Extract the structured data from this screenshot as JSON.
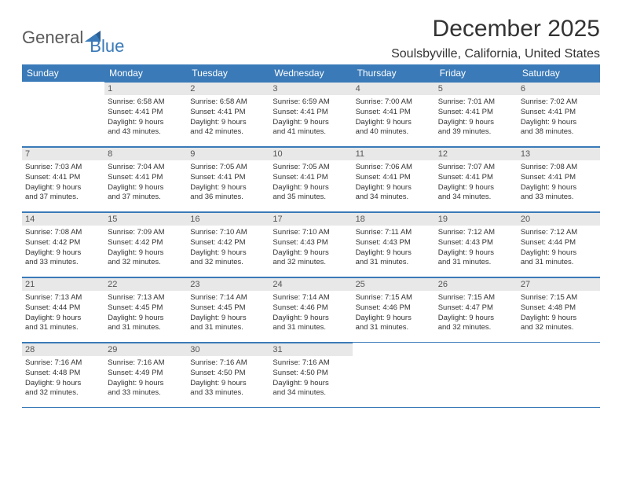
{
  "logo": {
    "part1": "General",
    "part2": "Blue"
  },
  "title": "December 2025",
  "location": "Soulsbyville, California, United States",
  "day_names": [
    "Sunday",
    "Monday",
    "Tuesday",
    "Wednesday",
    "Thursday",
    "Friday",
    "Saturday"
  ],
  "colors": {
    "header_bg": "#3a7ab8",
    "header_text": "#ffffff",
    "daynum_bg": "#e8e8e8",
    "daynum_text": "#555555",
    "rule": "#3a7ab8"
  },
  "weeks": [
    [
      {
        "n": "",
        "lines": []
      },
      {
        "n": "1",
        "lines": [
          "Sunrise: 6:58 AM",
          "Sunset: 4:41 PM",
          "Daylight: 9 hours",
          "and 43 minutes."
        ]
      },
      {
        "n": "2",
        "lines": [
          "Sunrise: 6:58 AM",
          "Sunset: 4:41 PM",
          "Daylight: 9 hours",
          "and 42 minutes."
        ]
      },
      {
        "n": "3",
        "lines": [
          "Sunrise: 6:59 AM",
          "Sunset: 4:41 PM",
          "Daylight: 9 hours",
          "and 41 minutes."
        ]
      },
      {
        "n": "4",
        "lines": [
          "Sunrise: 7:00 AM",
          "Sunset: 4:41 PM",
          "Daylight: 9 hours",
          "and 40 minutes."
        ]
      },
      {
        "n": "5",
        "lines": [
          "Sunrise: 7:01 AM",
          "Sunset: 4:41 PM",
          "Daylight: 9 hours",
          "and 39 minutes."
        ]
      },
      {
        "n": "6",
        "lines": [
          "Sunrise: 7:02 AM",
          "Sunset: 4:41 PM",
          "Daylight: 9 hours",
          "and 38 minutes."
        ]
      }
    ],
    [
      {
        "n": "7",
        "lines": [
          "Sunrise: 7:03 AM",
          "Sunset: 4:41 PM",
          "Daylight: 9 hours",
          "and 37 minutes."
        ]
      },
      {
        "n": "8",
        "lines": [
          "Sunrise: 7:04 AM",
          "Sunset: 4:41 PM",
          "Daylight: 9 hours",
          "and 37 minutes."
        ]
      },
      {
        "n": "9",
        "lines": [
          "Sunrise: 7:05 AM",
          "Sunset: 4:41 PM",
          "Daylight: 9 hours",
          "and 36 minutes."
        ]
      },
      {
        "n": "10",
        "lines": [
          "Sunrise: 7:05 AM",
          "Sunset: 4:41 PM",
          "Daylight: 9 hours",
          "and 35 minutes."
        ]
      },
      {
        "n": "11",
        "lines": [
          "Sunrise: 7:06 AM",
          "Sunset: 4:41 PM",
          "Daylight: 9 hours",
          "and 34 minutes."
        ]
      },
      {
        "n": "12",
        "lines": [
          "Sunrise: 7:07 AM",
          "Sunset: 4:41 PM",
          "Daylight: 9 hours",
          "and 34 minutes."
        ]
      },
      {
        "n": "13",
        "lines": [
          "Sunrise: 7:08 AM",
          "Sunset: 4:41 PM",
          "Daylight: 9 hours",
          "and 33 minutes."
        ]
      }
    ],
    [
      {
        "n": "14",
        "lines": [
          "Sunrise: 7:08 AM",
          "Sunset: 4:42 PM",
          "Daylight: 9 hours",
          "and 33 minutes."
        ]
      },
      {
        "n": "15",
        "lines": [
          "Sunrise: 7:09 AM",
          "Sunset: 4:42 PM",
          "Daylight: 9 hours",
          "and 32 minutes."
        ]
      },
      {
        "n": "16",
        "lines": [
          "Sunrise: 7:10 AM",
          "Sunset: 4:42 PM",
          "Daylight: 9 hours",
          "and 32 minutes."
        ]
      },
      {
        "n": "17",
        "lines": [
          "Sunrise: 7:10 AM",
          "Sunset: 4:43 PM",
          "Daylight: 9 hours",
          "and 32 minutes."
        ]
      },
      {
        "n": "18",
        "lines": [
          "Sunrise: 7:11 AM",
          "Sunset: 4:43 PM",
          "Daylight: 9 hours",
          "and 31 minutes."
        ]
      },
      {
        "n": "19",
        "lines": [
          "Sunrise: 7:12 AM",
          "Sunset: 4:43 PM",
          "Daylight: 9 hours",
          "and 31 minutes."
        ]
      },
      {
        "n": "20",
        "lines": [
          "Sunrise: 7:12 AM",
          "Sunset: 4:44 PM",
          "Daylight: 9 hours",
          "and 31 minutes."
        ]
      }
    ],
    [
      {
        "n": "21",
        "lines": [
          "Sunrise: 7:13 AM",
          "Sunset: 4:44 PM",
          "Daylight: 9 hours",
          "and 31 minutes."
        ]
      },
      {
        "n": "22",
        "lines": [
          "Sunrise: 7:13 AM",
          "Sunset: 4:45 PM",
          "Daylight: 9 hours",
          "and 31 minutes."
        ]
      },
      {
        "n": "23",
        "lines": [
          "Sunrise: 7:14 AM",
          "Sunset: 4:45 PM",
          "Daylight: 9 hours",
          "and 31 minutes."
        ]
      },
      {
        "n": "24",
        "lines": [
          "Sunrise: 7:14 AM",
          "Sunset: 4:46 PM",
          "Daylight: 9 hours",
          "and 31 minutes."
        ]
      },
      {
        "n": "25",
        "lines": [
          "Sunrise: 7:15 AM",
          "Sunset: 4:46 PM",
          "Daylight: 9 hours",
          "and 31 minutes."
        ]
      },
      {
        "n": "26",
        "lines": [
          "Sunrise: 7:15 AM",
          "Sunset: 4:47 PM",
          "Daylight: 9 hours",
          "and 32 minutes."
        ]
      },
      {
        "n": "27",
        "lines": [
          "Sunrise: 7:15 AM",
          "Sunset: 4:48 PM",
          "Daylight: 9 hours",
          "and 32 minutes."
        ]
      }
    ],
    [
      {
        "n": "28",
        "lines": [
          "Sunrise: 7:16 AM",
          "Sunset: 4:48 PM",
          "Daylight: 9 hours",
          "and 32 minutes."
        ]
      },
      {
        "n": "29",
        "lines": [
          "Sunrise: 7:16 AM",
          "Sunset: 4:49 PM",
          "Daylight: 9 hours",
          "and 33 minutes."
        ]
      },
      {
        "n": "30",
        "lines": [
          "Sunrise: 7:16 AM",
          "Sunset: 4:50 PM",
          "Daylight: 9 hours",
          "and 33 minutes."
        ]
      },
      {
        "n": "31",
        "lines": [
          "Sunrise: 7:16 AM",
          "Sunset: 4:50 PM",
          "Daylight: 9 hours",
          "and 34 minutes."
        ]
      },
      {
        "n": "",
        "lines": []
      },
      {
        "n": "",
        "lines": []
      },
      {
        "n": "",
        "lines": []
      }
    ]
  ]
}
